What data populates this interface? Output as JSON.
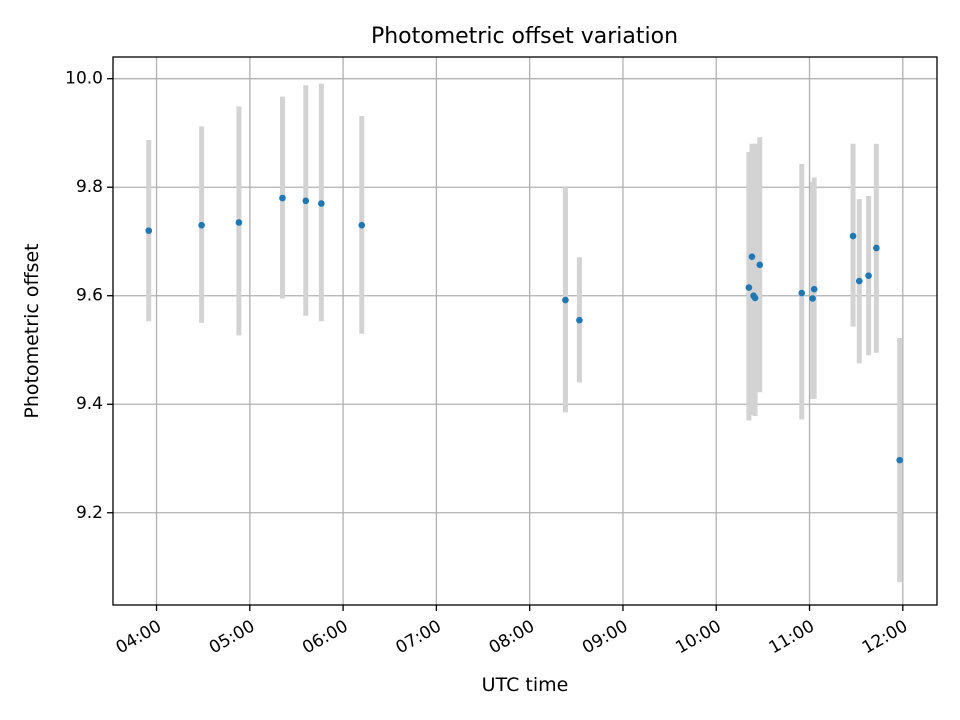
{
  "chart_data": {
    "type": "scatter",
    "title": "Photometric offset variation",
    "xlabel": "UTC time",
    "ylabel": "Photometric offset",
    "x_type": "time",
    "xlim": [
      "03:32",
      "12:22"
    ],
    "ylim": [
      9.03,
      10.04
    ],
    "x_ticks": [
      "04:00",
      "05:00",
      "06:00",
      "07:00",
      "08:00",
      "09:00",
      "10:00",
      "11:00",
      "12:00"
    ],
    "y_ticks": [
      9.2,
      9.4,
      9.6,
      9.8,
      10.0
    ],
    "y_tick_labels": [
      "9.2",
      "9.4",
      "9.6",
      "9.8",
      "10.0"
    ],
    "grid": true,
    "marker_color": "#1f77b4",
    "errorbar_color": "#d3d3d3",
    "series": [
      {
        "x": [
          "03:55",
          "04:29",
          "04:53",
          "05:21",
          "05:36",
          "05:46",
          "06:12",
          "08:23",
          "08:32",
          "10:21",
          "10:23",
          "10:24",
          "10:25",
          "10:28",
          "10:55",
          "11:02",
          "11:03",
          "11:28",
          "11:32",
          "11:38",
          "11:43",
          "11:58"
        ],
        "y": [
          9.72,
          9.73,
          9.735,
          9.78,
          9.775,
          9.77,
          9.73,
          9.592,
          9.555,
          9.615,
          9.672,
          9.6,
          9.596,
          9.657,
          9.605,
          9.595,
          9.612,
          9.71,
          9.627,
          9.637,
          9.688,
          9.297
        ],
        "y_low": [
          9.553,
          9.55,
          9.527,
          9.595,
          9.563,
          9.553,
          9.53,
          9.385,
          9.44,
          9.37,
          9.465,
          9.38,
          9.378,
          9.422,
          9.372,
          9.41,
          9.41,
          9.543,
          9.475,
          9.49,
          9.495,
          9.072
        ],
        "y_high": [
          9.887,
          9.912,
          9.949,
          9.967,
          9.988,
          9.991,
          9.931,
          9.8,
          9.671,
          9.865,
          9.88,
          9.815,
          9.88,
          9.892,
          9.843,
          9.81,
          9.818,
          9.88,
          9.778,
          9.784,
          9.88,
          9.522
        ]
      }
    ]
  }
}
